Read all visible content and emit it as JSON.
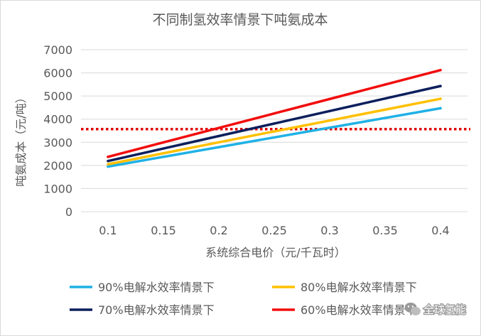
{
  "chart_data": {
    "type": "line",
    "title": "不同制氢效率情景下吨氨成本",
    "xlabel": "系统综合电价（元/千瓦时）",
    "ylabel": "吨氨成本（元/吨）",
    "x": [
      "0.1",
      "0.15",
      "0.2",
      "0.25",
      "0.3",
      "0.35",
      "0.4"
    ],
    "xlim": [
      0.1,
      0.4
    ],
    "ylim": [
      0,
      7000
    ],
    "yticks": [
      "0",
      "1000",
      "2000",
      "3000",
      "4000",
      "5000",
      "6000",
      "7000"
    ],
    "grid": true,
    "legend_position": "bottom",
    "series": [
      {
        "name": "90%电解水效率情景下",
        "color": "#1fb1e6",
        "values": [
          1950,
          2370,
          2790,
          3210,
          3630,
          4050,
          4470
        ]
      },
      {
        "name": "80%电解水效率情景下",
        "color": "#ffc000",
        "values": [
          2050,
          2525,
          3000,
          3470,
          3940,
          4410,
          4880
        ]
      },
      {
        "name": "70%电解水效率情景下",
        "color": "#0b1f5c",
        "values": [
          2190,
          2730,
          3270,
          3810,
          4350,
          4890,
          5430
        ]
      },
      {
        "name": "60%电解水效率情景下",
        "color": "#f20d0d",
        "values": [
          2370,
          2995,
          3620,
          4245,
          4870,
          5495,
          6120
        ]
      }
    ],
    "reference_line": {
      "value": 3570,
      "color": "#e00000",
      "style": "dotted"
    }
  },
  "watermark": {
    "text": "全球氢能",
    "icon": "wechat-icon"
  }
}
